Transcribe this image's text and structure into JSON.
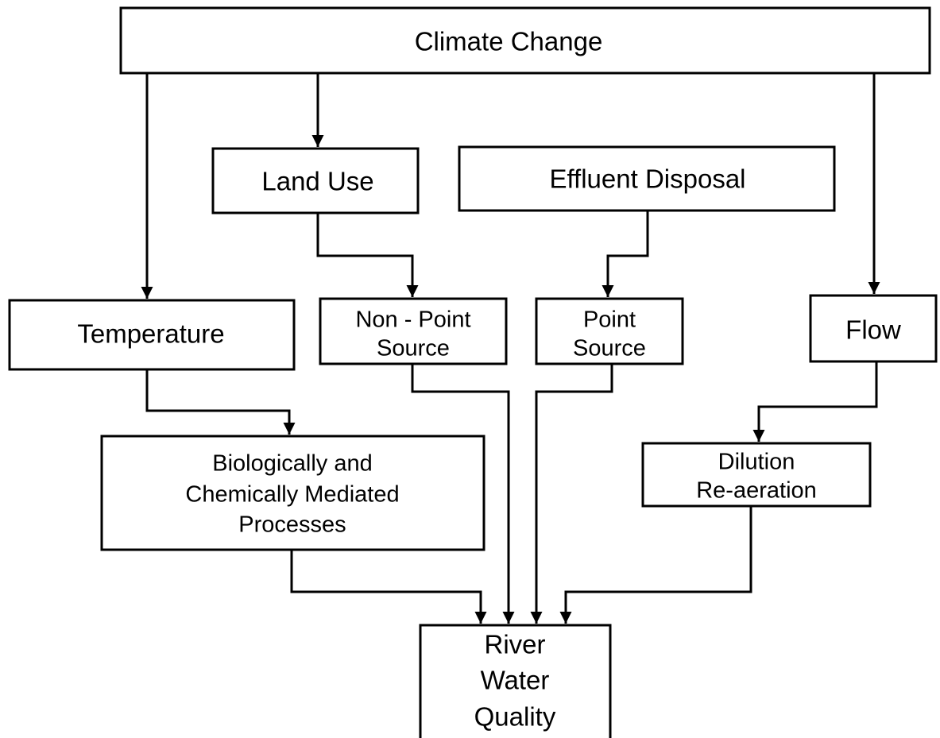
{
  "nodes": [
    {
      "label": [
        "Climate Change"
      ]
    },
    {
      "label": [
        "Land Use"
      ]
    },
    {
      "label": [
        "Effluent Disposal"
      ]
    },
    {
      "label": [
        "Temperature"
      ]
    },
    {
      "label": [
        "Non - Point",
        "Source"
      ]
    },
    {
      "label": [
        "Point",
        "Source"
      ]
    },
    {
      "label": [
        "Flow"
      ]
    },
    {
      "label": [
        "Biologically and",
        "Chemically Mediated",
        "Processes"
      ]
    },
    {
      "label": [
        "Dilution",
        "Re-aeration"
      ]
    },
    {
      "label": [
        "River",
        "Water",
        "Quality"
      ]
    }
  ]
}
